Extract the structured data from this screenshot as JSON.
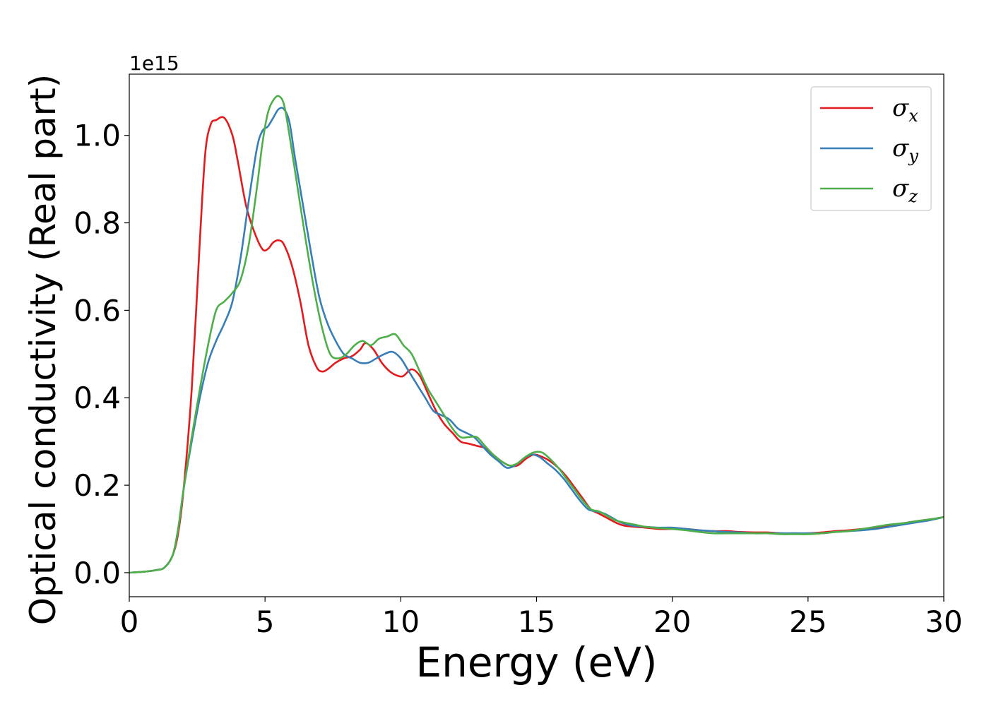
{
  "chart_data": {
    "type": "line",
    "title": "",
    "xlabel": "Energy (eV)",
    "ylabel": "Optical conductivity (Real part)",
    "y_offset_text": "1e15",
    "xlim": [
      0,
      30
    ],
    "ylim": [
      -0.055,
      1.14
    ],
    "x_ticks": [
      0,
      5,
      10,
      15,
      20,
      25,
      30
    ],
    "x_tick_labels": [
      "0",
      "5",
      "10",
      "15",
      "20",
      "25",
      "30"
    ],
    "y_ticks": [
      0.0,
      0.2,
      0.4,
      0.6,
      0.8,
      1.0
    ],
    "y_tick_labels": [
      "0.0",
      "0.2",
      "0.4",
      "0.6",
      "0.8",
      "1.0"
    ],
    "grid": false,
    "legend_position": "top-right",
    "series": [
      {
        "name": "σx",
        "legend_base": "σ",
        "legend_sub": "x",
        "color": "#e41a1c",
        "x": [
          0,
          0.5,
          1.0,
          1.3,
          1.6,
          1.8,
          2.0,
          2.3,
          2.6,
          2.8,
          3.0,
          3.2,
          3.5,
          3.8,
          4.0,
          4.3,
          4.6,
          4.9,
          5.1,
          5.3,
          5.5,
          5.7,
          6.0,
          6.3,
          6.6,
          6.9,
          7.1,
          7.3,
          7.6,
          7.9,
          8.2,
          8.5,
          8.7,
          9.0,
          9.3,
          9.6,
          9.9,
          10.1,
          10.4,
          10.7,
          11.0,
          11.3,
          11.6,
          11.9,
          12.2,
          12.5,
          12.8,
          13.1,
          13.4,
          13.7,
          14.0,
          14.3,
          14.6,
          14.9,
          15.2,
          15.5,
          15.8,
          16.1,
          16.4,
          16.7,
          17.0,
          17.3,
          17.6,
          17.9,
          18.2,
          18.6,
          19.0,
          19.5,
          20.0,
          20.5,
          21.0,
          21.5,
          22.0,
          22.5,
          23.0,
          23.5,
          24.0,
          24.5,
          25.0,
          25.5,
          26.0,
          26.5,
          27.0,
          27.5,
          28.0,
          28.5,
          29.0,
          29.5,
          30.0
        ],
        "values": [
          0.0,
          0.002,
          0.006,
          0.012,
          0.04,
          0.09,
          0.19,
          0.42,
          0.76,
          0.96,
          1.025,
          1.035,
          1.04,
          1.0,
          0.94,
          0.84,
          0.78,
          0.74,
          0.74,
          0.755,
          0.76,
          0.75,
          0.7,
          0.62,
          0.52,
          0.47,
          0.46,
          0.465,
          0.48,
          0.49,
          0.495,
          0.51,
          0.525,
          0.51,
          0.48,
          0.46,
          0.45,
          0.45,
          0.465,
          0.45,
          0.41,
          0.37,
          0.34,
          0.32,
          0.3,
          0.295,
          0.29,
          0.285,
          0.27,
          0.255,
          0.245,
          0.245,
          0.26,
          0.27,
          0.265,
          0.255,
          0.24,
          0.22,
          0.195,
          0.17,
          0.145,
          0.135,
          0.125,
          0.115,
          0.108,
          0.105,
          0.103,
          0.1,
          0.1,
          0.1,
          0.097,
          0.095,
          0.095,
          0.093,
          0.092,
          0.092,
          0.09,
          0.09,
          0.09,
          0.092,
          0.095,
          0.097,
          0.1,
          0.103,
          0.108,
          0.113,
          0.118,
          0.122,
          0.127
        ]
      },
      {
        "name": "σy",
        "legend_base": "σ",
        "legend_sub": "y",
        "color": "#377eb8",
        "x": [
          0,
          0.5,
          1.0,
          1.3,
          1.6,
          1.8,
          2.0,
          2.3,
          2.6,
          2.9,
          3.2,
          3.5,
          3.8,
          4.1,
          4.4,
          4.7,
          4.9,
          5.1,
          5.3,
          5.5,
          5.7,
          5.9,
          6.1,
          6.4,
          6.7,
          7.0,
          7.3,
          7.6,
          7.9,
          8.2,
          8.5,
          8.8,
          9.1,
          9.4,
          9.7,
          10.0,
          10.3,
          10.6,
          10.9,
          11.2,
          11.5,
          11.8,
          12.1,
          12.4,
          12.7,
          13.0,
          13.3,
          13.6,
          13.9,
          14.2,
          14.5,
          14.8,
          15.1,
          15.4,
          15.7,
          16.0,
          16.3,
          16.6,
          16.9,
          17.2,
          17.5,
          17.8,
          18.1,
          18.5,
          19.0,
          19.5,
          20.0,
          20.5,
          21.0,
          21.5,
          22.0,
          22.5,
          23.0,
          23.5,
          24.0,
          24.5,
          25.0,
          25.5,
          26.0,
          26.5,
          27.0,
          27.5,
          28.0,
          28.5,
          29.0,
          29.5,
          30.0
        ],
        "values": [
          0.0,
          0.002,
          0.006,
          0.012,
          0.04,
          0.1,
          0.19,
          0.3,
          0.4,
          0.48,
          0.53,
          0.57,
          0.62,
          0.72,
          0.85,
          0.97,
          1.01,
          1.02,
          1.04,
          1.06,
          1.06,
          1.03,
          0.95,
          0.84,
          0.73,
          0.63,
          0.57,
          0.53,
          0.5,
          0.49,
          0.48,
          0.48,
          0.49,
          0.5,
          0.505,
          0.49,
          0.46,
          0.43,
          0.4,
          0.37,
          0.36,
          0.35,
          0.33,
          0.32,
          0.31,
          0.29,
          0.27,
          0.255,
          0.24,
          0.245,
          0.26,
          0.27,
          0.265,
          0.25,
          0.235,
          0.215,
          0.19,
          0.165,
          0.145,
          0.14,
          0.135,
          0.125,
          0.115,
          0.108,
          0.105,
          0.103,
          0.103,
          0.1,
          0.097,
          0.095,
          0.093,
          0.092,
          0.09,
          0.09,
          0.09,
          0.09,
          0.09,
          0.09,
          0.093,
          0.095,
          0.097,
          0.1,
          0.105,
          0.11,
          0.115,
          0.12,
          0.127
        ]
      },
      {
        "name": "σz",
        "legend_base": "σ",
        "legend_sub": "z",
        "color": "#4daf4a",
        "x": [
          0,
          0.5,
          1.0,
          1.3,
          1.6,
          1.8,
          2.0,
          2.3,
          2.6,
          2.9,
          3.2,
          3.5,
          3.8,
          4.1,
          4.4,
          4.7,
          4.9,
          5.1,
          5.3,
          5.5,
          5.7,
          5.9,
          6.2,
          6.5,
          6.8,
          7.1,
          7.4,
          7.7,
          8.0,
          8.3,
          8.6,
          8.9,
          9.2,
          9.5,
          9.8,
          10.1,
          10.4,
          10.7,
          11.0,
          11.3,
          11.6,
          11.9,
          12.2,
          12.5,
          12.8,
          13.1,
          13.4,
          13.7,
          14.0,
          14.3,
          14.6,
          14.9,
          15.2,
          15.5,
          15.8,
          16.1,
          16.4,
          16.7,
          17.0,
          17.3,
          17.6,
          17.9,
          18.2,
          18.6,
          19.0,
          19.5,
          20.0,
          20.5,
          21.0,
          21.5,
          22.0,
          22.5,
          23.0,
          23.5,
          24.0,
          24.5,
          25.0,
          25.5,
          26.0,
          26.5,
          27.0,
          27.5,
          28.0,
          28.5,
          29.0,
          29.5,
          30.0
        ],
        "values": [
          0.0,
          0.002,
          0.006,
          0.012,
          0.04,
          0.1,
          0.19,
          0.31,
          0.42,
          0.52,
          0.6,
          0.62,
          0.64,
          0.67,
          0.75,
          0.88,
          0.98,
          1.05,
          1.08,
          1.09,
          1.07,
          1.0,
          0.88,
          0.76,
          0.65,
          0.56,
          0.5,
          0.49,
          0.5,
          0.52,
          0.53,
          0.52,
          0.535,
          0.54,
          0.545,
          0.52,
          0.5,
          0.46,
          0.42,
          0.39,
          0.36,
          0.33,
          0.31,
          0.31,
          0.31,
          0.29,
          0.27,
          0.255,
          0.245,
          0.25,
          0.265,
          0.275,
          0.275,
          0.26,
          0.24,
          0.215,
          0.19,
          0.165,
          0.145,
          0.14,
          0.13,
          0.12,
          0.115,
          0.11,
          0.105,
          0.102,
          0.1,
          0.097,
          0.093,
          0.09,
          0.09,
          0.09,
          0.09,
          0.09,
          0.088,
          0.088,
          0.088,
          0.09,
          0.093,
          0.095,
          0.1,
          0.105,
          0.11,
          0.113,
          0.118,
          0.122,
          0.127
        ]
      }
    ]
  }
}
